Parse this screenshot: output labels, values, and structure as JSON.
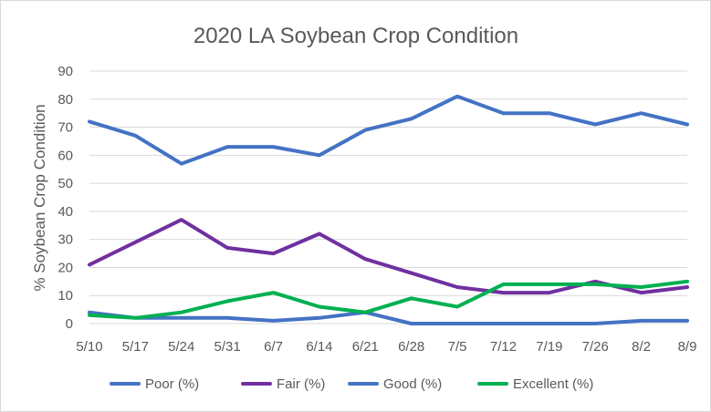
{
  "chart_data": {
    "type": "line",
    "title": "2020 LA Soybean Crop Condition",
    "xlabel": "",
    "ylabel": "% Soybean Crop Condition",
    "ylim": [
      0,
      90
    ],
    "yticks": [
      0,
      10,
      20,
      30,
      40,
      50,
      60,
      70,
      80,
      90
    ],
    "grid": true,
    "legend_position": "bottom",
    "categories": [
      "5/10",
      "5/17",
      "5/24",
      "5/31",
      "6/7",
      "6/14",
      "6/21",
      "6/28",
      "7/5",
      "7/12",
      "7/19",
      "7/26",
      "8/2",
      "8/9"
    ],
    "series": [
      {
        "name": "Poor (%)",
        "color": "#4472c4",
        "values": [
          4,
          2,
          2,
          2,
          1,
          2,
          4,
          0,
          0,
          0,
          0,
          0,
          1,
          1
        ]
      },
      {
        "name": "Fair (%)",
        "color": "#7030a0",
        "values": [
          21,
          29,
          37,
          27,
          25,
          32,
          23,
          18,
          13,
          11,
          11,
          15,
          11,
          13
        ]
      },
      {
        "name": "Good (%)",
        "color": "#4472c4",
        "values": [
          72,
          67,
          57,
          63,
          63,
          60,
          69,
          73,
          81,
          75,
          75,
          71,
          75,
          71
        ]
      },
      {
        "name": "Excellent (%)",
        "color": "#00b050",
        "values": [
          3,
          2,
          4,
          8,
          11,
          6,
          4,
          9,
          6,
          14,
          14,
          14,
          13,
          15
        ]
      }
    ]
  }
}
